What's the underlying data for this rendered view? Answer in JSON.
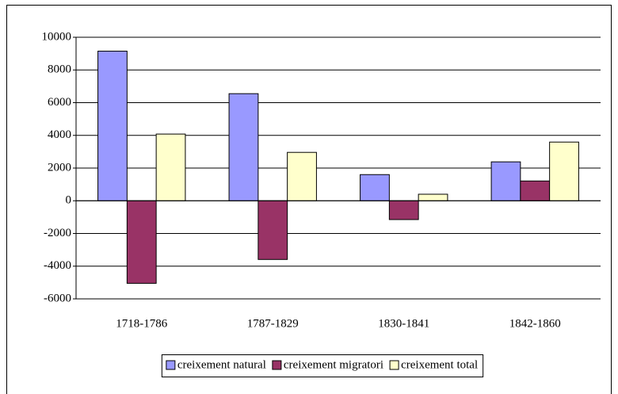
{
  "chart_data": {
    "type": "bar",
    "categories": [
      "1718-1786",
      "1787-1829",
      "1830-1841",
      "1842-1860"
    ],
    "series": [
      {
        "name": "creixement natural",
        "color": "#9999ff",
        "values": [
          9150,
          6550,
          1600,
          2380
        ]
      },
      {
        "name": "creixement migratori",
        "color": "#993366",
        "values": [
          -5050,
          -3590,
          -1150,
          1210
        ]
      },
      {
        "name": "creixement total",
        "color": "#ffffcc",
        "values": [
          4080,
          2960,
          400,
          3590
        ]
      }
    ],
    "ylim": [
      -6000,
      10000
    ],
    "yticks": [
      -6000,
      -4000,
      -2000,
      0,
      2000,
      4000,
      6000,
      8000,
      10000
    ],
    "grid": true,
    "legend": "bottom"
  }
}
